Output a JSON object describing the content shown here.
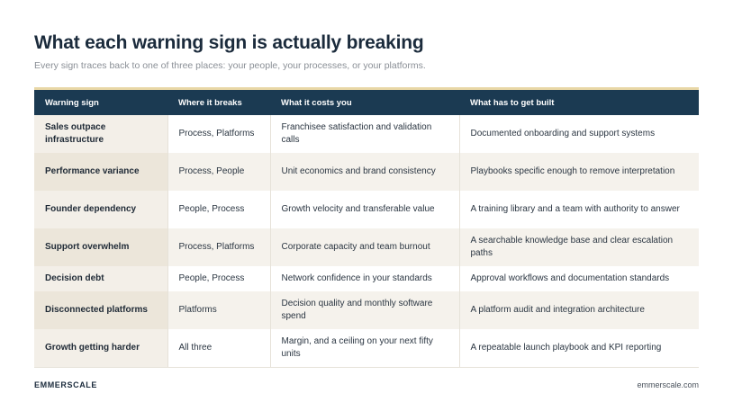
{
  "header": {
    "title": "What each warning sign is actually breaking",
    "subtitle": "Every sign traces back to one of three places: your people, your processes, or your platforms."
  },
  "table": {
    "columns": [
      "Warning sign",
      "Where it breaks",
      "What it costs you",
      "What has to get built"
    ],
    "rows": [
      [
        "Sales outpace infrastructure",
        "Process, Platforms",
        "Franchisee satisfaction and validation calls",
        "Documented onboarding and support systems"
      ],
      [
        "Performance variance",
        "Process, People",
        "Unit economics and brand consistency",
        "Playbooks specific enough to remove interpretation"
      ],
      [
        "Founder dependency",
        "People, Process",
        "Growth velocity and transferable value",
        "A training library and a team with authority to answer"
      ],
      [
        "Support overwhelm",
        "Process, Platforms",
        "Corporate capacity and team burnout",
        "A searchable knowledge base and clear escalation paths"
      ],
      [
        "Decision debt",
        "People, Process",
        "Network confidence in your standards",
        "Approval workflows and documentation standards"
      ],
      [
        "Disconnected platforms",
        "Platforms",
        "Decision quality and monthly software spend",
        "A platform audit and integration architecture"
      ],
      [
        "Growth getting harder",
        "All three",
        "Margin, and a ceiling on your next fifty units",
        "A repeatable launch playbook and KPI reporting"
      ]
    ]
  },
  "footer": {
    "brand": "EMMERSCALE",
    "url": "emmerscale.com"
  },
  "colors": {
    "header_bg": "#1b3a52",
    "accent": "#e8d7a6",
    "row_alt": "#f5f2ec"
  }
}
